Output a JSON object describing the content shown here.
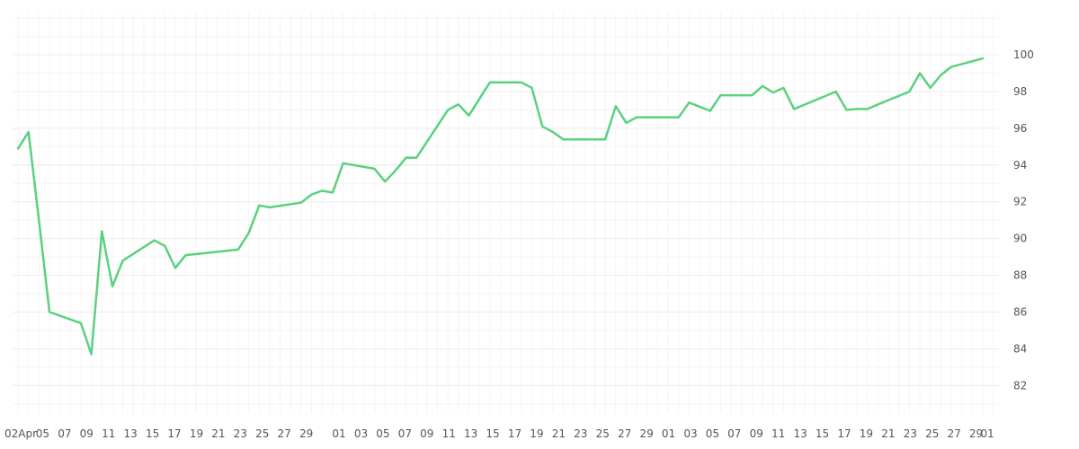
{
  "chart_data": {
    "type": "line",
    "title": "",
    "xlabel": "",
    "ylabel": "",
    "ylim": [
      80.5,
      102.3
    ],
    "y_ticks": [
      82,
      84,
      86,
      88,
      90,
      92,
      94,
      96,
      98,
      100
    ],
    "x_tick_labels": [
      "02Apr",
      "05",
      "07",
      "09",
      "11",
      "13",
      "15",
      "17",
      "19",
      "21",
      "23",
      "25",
      "27",
      "29",
      "01",
      "03",
      "05",
      "07",
      "09",
      "11",
      "13",
      "15",
      "17",
      "19",
      "21",
      "23",
      "25",
      "27",
      "29",
      "01",
      "03",
      "05",
      "07",
      "09",
      "11",
      "13",
      "15",
      "17",
      "19",
      "21",
      "23",
      "25",
      "27",
      "29",
      "01"
    ],
    "grid": true,
    "legend": "none",
    "series": [
      {
        "color": "#5ad17f",
        "points": [
          [
            "2024-04-02",
            94.9
          ],
          [
            "2024-04-03",
            95.8
          ],
          [
            "2024-04-04",
            91.0
          ],
          [
            "2024-04-05",
            86.0
          ],
          [
            "2024-04-08",
            85.4
          ],
          [
            "2024-04-09",
            83.7
          ],
          [
            "2024-04-10",
            90.4
          ],
          [
            "2024-04-11",
            87.4
          ],
          [
            "2024-04-12",
            88.8
          ],
          [
            "2024-04-15",
            89.9
          ],
          [
            "2024-04-16",
            89.6
          ],
          [
            "2024-04-17",
            88.4
          ],
          [
            "2024-04-18",
            89.1
          ],
          [
            "2024-04-23",
            89.4
          ],
          [
            "2024-04-24",
            90.3
          ],
          [
            "2024-04-25",
            91.8
          ],
          [
            "2024-04-26",
            91.7
          ],
          [
            "2024-04-29",
            91.95
          ],
          [
            "2024-04-30",
            92.4
          ],
          [
            "2024-05-01",
            92.6
          ],
          [
            "2024-05-02",
            92.5
          ],
          [
            "2024-05-03",
            94.1
          ],
          [
            "2024-05-06",
            93.8
          ],
          [
            "2024-05-07",
            93.1
          ],
          [
            "2024-05-08",
            93.7
          ],
          [
            "2024-05-09",
            94.4
          ],
          [
            "2024-05-10",
            94.4
          ],
          [
            "2024-05-13",
            97.0
          ],
          [
            "2024-05-14",
            97.3
          ],
          [
            "2024-05-15",
            96.7
          ],
          [
            "2024-05-17",
            98.5
          ],
          [
            "2024-05-20",
            98.5
          ],
          [
            "2024-05-21",
            98.2
          ],
          [
            "2024-05-22",
            96.1
          ],
          [
            "2024-05-23",
            95.8
          ],
          [
            "2024-05-24",
            95.4
          ],
          [
            "2024-05-28",
            95.4
          ],
          [
            "2024-05-29",
            97.2
          ],
          [
            "2024-05-30",
            96.3
          ],
          [
            "2024-05-31",
            96.6
          ],
          [
            "2024-06-03",
            96.6
          ],
          [
            "2024-06-04",
            96.6
          ],
          [
            "2024-06-05",
            97.4
          ],
          [
            "2024-06-07",
            96.95
          ],
          [
            "2024-06-08",
            97.8
          ],
          [
            "2024-06-11",
            97.8
          ],
          [
            "2024-06-12",
            98.3
          ],
          [
            "2024-06-13",
            97.95
          ],
          [
            "2024-06-14",
            98.2
          ],
          [
            "2024-06-15",
            97.05
          ],
          [
            "2024-06-19",
            98.0
          ],
          [
            "2024-06-20",
            97.0
          ],
          [
            "2024-06-21",
            97.05
          ],
          [
            "2024-06-22",
            97.05
          ],
          [
            "2024-06-23",
            97.3
          ],
          [
            "2024-06-26",
            98.0
          ],
          [
            "2024-06-27",
            99.0
          ],
          [
            "2024-06-28",
            98.2
          ],
          [
            "2024-06-29",
            98.9
          ],
          [
            "2024-06-30",
            99.35
          ],
          [
            "2024-07-03",
            99.8
          ]
        ]
      }
    ]
  }
}
